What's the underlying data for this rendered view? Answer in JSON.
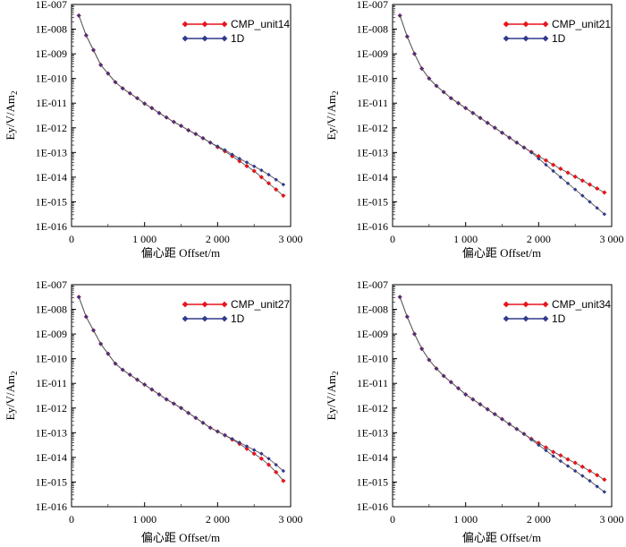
{
  "colors": {
    "cmp": "#e8141b",
    "oned": "#303a8c",
    "axis": "#000000"
  },
  "chart_data": [
    {
      "type": "line",
      "scale": {
        "y": "log10"
      },
      "xlabel": "偏心距 Offset/m",
      "ylabel": "Ey/V/Am",
      "ylabel_sub": "2",
      "xlim": [
        0,
        3000
      ],
      "xticks": [
        0,
        1000,
        2000,
        3000
      ],
      "xtick_labels": [
        "0",
        "1 000",
        "2 000",
        "3 000"
      ],
      "ylim_exp": [
        -16,
        -7
      ],
      "ytick_labels": [
        "1E-016",
        "1E-015",
        "1E-014",
        "1E-013",
        "1E-012",
        "1E-011",
        "1E-010",
        "1E-009",
        "1E-008",
        "1E-007"
      ],
      "legend": {
        "position": "top-right"
      },
      "series": [
        {
          "name": "CMP_unit14",
          "color_key": "cmp",
          "marker": "diamond",
          "x": [
            100,
            200,
            300,
            400,
            500,
            600,
            700,
            800,
            900,
            1000,
            1100,
            1200,
            1300,
            1400,
            1500,
            1600,
            1700,
            1800,
            1900,
            2000,
            2100,
            2200,
            2300,
            2400,
            2500,
            2600,
            2700,
            2800,
            2900
          ],
          "y_exp": [
            -7.45,
            -8.25,
            -8.85,
            -9.45,
            -9.8,
            -10.15,
            -10.4,
            -10.6,
            -10.8,
            -11.02,
            -11.2,
            -11.4,
            -11.58,
            -11.76,
            -11.92,
            -12.1,
            -12.25,
            -12.42,
            -12.6,
            -12.78,
            -12.95,
            -13.15,
            -13.35,
            -13.55,
            -13.75,
            -14.0,
            -14.25,
            -14.5,
            -14.75
          ]
        },
        {
          "name": "1D",
          "color_key": "oned",
          "marker": "diamond",
          "x": [
            100,
            200,
            300,
            400,
            500,
            600,
            700,
            800,
            900,
            1000,
            1100,
            1200,
            1300,
            1400,
            1500,
            1600,
            1700,
            1800,
            1900,
            2000,
            2100,
            2200,
            2300,
            2400,
            2500,
            2600,
            2700,
            2800,
            2900
          ],
          "y_exp": [
            -7.45,
            -8.25,
            -8.85,
            -9.45,
            -9.8,
            -10.15,
            -10.4,
            -10.6,
            -10.8,
            -11.02,
            -11.2,
            -11.4,
            -11.58,
            -11.76,
            -11.92,
            -12.1,
            -12.25,
            -12.42,
            -12.6,
            -12.75,
            -12.9,
            -13.08,
            -13.25,
            -13.4,
            -13.56,
            -13.72,
            -13.9,
            -14.1,
            -14.3
          ]
        }
      ]
    },
    {
      "type": "line",
      "scale": {
        "y": "log10"
      },
      "xlabel": "偏心距 Offset/m",
      "ylabel": "Ey/V/Am",
      "ylabel_sub": "2",
      "xlim": [
        0,
        3000
      ],
      "xticks": [
        0,
        1000,
        2000,
        3000
      ],
      "xtick_labels": [
        "0",
        "1 000",
        "2 000",
        "3 000"
      ],
      "ylim_exp": [
        -16,
        -7
      ],
      "ytick_labels": [
        "1E-016",
        "1E-015",
        "1E-014",
        "1E-013",
        "1E-012",
        "1E-011",
        "1E-010",
        "1E-009",
        "1E-008",
        "1E-007"
      ],
      "legend": {
        "position": "top-right"
      },
      "series": [
        {
          "name": "CMP_unit21",
          "color_key": "cmp",
          "marker": "diamond",
          "x": [
            100,
            200,
            300,
            400,
            500,
            600,
            700,
            800,
            900,
            1000,
            1100,
            1200,
            1300,
            1400,
            1500,
            1600,
            1700,
            1800,
            1900,
            2000,
            2100,
            2200,
            2300,
            2400,
            2500,
            2600,
            2700,
            2800,
            2900
          ],
          "y_exp": [
            -7.45,
            -8.3,
            -9.0,
            -9.6,
            -10.0,
            -10.3,
            -10.55,
            -10.8,
            -11.0,
            -11.2,
            -11.4,
            -11.6,
            -11.8,
            -12.0,
            -12.2,
            -12.4,
            -12.6,
            -12.8,
            -12.98,
            -13.15,
            -13.32,
            -13.5,
            -13.66,
            -13.82,
            -13.98,
            -14.14,
            -14.3,
            -14.46,
            -14.62
          ]
        },
        {
          "name": "1D",
          "color_key": "oned",
          "marker": "diamond",
          "x": [
            100,
            200,
            300,
            400,
            500,
            600,
            700,
            800,
            900,
            1000,
            1100,
            1200,
            1300,
            1400,
            1500,
            1600,
            1700,
            1800,
            1900,
            2000,
            2100,
            2200,
            2300,
            2400,
            2500,
            2600,
            2700,
            2800,
            2900
          ],
          "y_exp": [
            -7.45,
            -8.3,
            -9.0,
            -9.6,
            -10.0,
            -10.3,
            -10.55,
            -10.8,
            -11.0,
            -11.2,
            -11.4,
            -11.6,
            -11.8,
            -12.0,
            -12.2,
            -12.4,
            -12.6,
            -12.8,
            -13.0,
            -13.25,
            -13.5,
            -13.75,
            -14.0,
            -14.25,
            -14.5,
            -14.75,
            -15.0,
            -15.25,
            -15.5
          ]
        }
      ]
    },
    {
      "type": "line",
      "scale": {
        "y": "log10"
      },
      "xlabel": "偏心距 Offset/m",
      "ylabel": "Ey/V/Am",
      "ylabel_sub": "2",
      "xlim": [
        0,
        3000
      ],
      "xticks": [
        0,
        1000,
        2000,
        3000
      ],
      "xtick_labels": [
        "0",
        "1 000",
        "2 000",
        "3 000"
      ],
      "ylim_exp": [
        -16,
        -7
      ],
      "ytick_labels": [
        "1E-016",
        "1E-015",
        "1E-014",
        "1E-013",
        "1E-012",
        "1E-011",
        "1E-010",
        "1E-009",
        "1E-008",
        "1E-007"
      ],
      "legend": {
        "position": "top-right"
      },
      "series": [
        {
          "name": "CMP_unit27",
          "color_key": "cmp",
          "marker": "diamond",
          "x": [
            100,
            200,
            300,
            400,
            500,
            600,
            700,
            800,
            900,
            1000,
            1100,
            1200,
            1300,
            1400,
            1500,
            1600,
            1700,
            1800,
            1900,
            2000,
            2100,
            2200,
            2300,
            2400,
            2500,
            2600,
            2700,
            2800,
            2900
          ],
          "y_exp": [
            -7.5,
            -8.3,
            -8.85,
            -9.4,
            -9.8,
            -10.2,
            -10.45,
            -10.65,
            -10.85,
            -11.05,
            -11.25,
            -11.45,
            -11.65,
            -11.82,
            -12.0,
            -12.2,
            -12.4,
            -12.6,
            -12.8,
            -12.95,
            -13.1,
            -13.28,
            -13.45,
            -13.65,
            -13.85,
            -14.05,
            -14.3,
            -14.6,
            -14.95
          ]
        },
        {
          "name": "1D",
          "color_key": "oned",
          "marker": "diamond",
          "x": [
            100,
            200,
            300,
            400,
            500,
            600,
            700,
            800,
            900,
            1000,
            1100,
            1200,
            1300,
            1400,
            1500,
            1600,
            1700,
            1800,
            1900,
            2000,
            2100,
            2200,
            2300,
            2400,
            2500,
            2600,
            2700,
            2800,
            2900
          ],
          "y_exp": [
            -7.5,
            -8.3,
            -8.85,
            -9.4,
            -9.8,
            -10.2,
            -10.45,
            -10.65,
            -10.85,
            -11.05,
            -11.25,
            -11.45,
            -11.65,
            -11.82,
            -12.0,
            -12.2,
            -12.4,
            -12.6,
            -12.8,
            -12.95,
            -13.1,
            -13.25,
            -13.4,
            -13.55,
            -13.7,
            -13.85,
            -14.05,
            -14.3,
            -14.55
          ]
        }
      ]
    },
    {
      "type": "line",
      "scale": {
        "y": "log10"
      },
      "xlabel": "偏心距 Offset/m",
      "ylabel": "Ey/V/Am",
      "ylabel_sub": "2",
      "xlim": [
        0,
        3000
      ],
      "xticks": [
        0,
        1000,
        2000,
        3000
      ],
      "xtick_labels": [
        "0",
        "1 000",
        "2 000",
        "3 000"
      ],
      "ylim_exp": [
        -16,
        -7
      ],
      "ytick_labels": [
        "1E-016",
        "1E-015",
        "1E-014",
        "1E-013",
        "1E-012",
        "1E-011",
        "1E-010",
        "1E-009",
        "1E-008",
        "1E-007"
      ],
      "legend": {
        "position": "top-right"
      },
      "series": [
        {
          "name": "CMP_unit34",
          "color_key": "cmp",
          "marker": "diamond",
          "x": [
            100,
            200,
            300,
            400,
            500,
            600,
            700,
            800,
            900,
            1000,
            1100,
            1200,
            1300,
            1400,
            1500,
            1600,
            1700,
            1800,
            1900,
            2000,
            2100,
            2200,
            2300,
            2400,
            2500,
            2600,
            2700,
            2800,
            2900
          ],
          "y_exp": [
            -7.5,
            -8.3,
            -9.0,
            -9.6,
            -10.05,
            -10.4,
            -10.7,
            -10.95,
            -11.2,
            -11.45,
            -11.65,
            -11.85,
            -12.05,
            -12.25,
            -12.45,
            -12.65,
            -12.85,
            -13.05,
            -13.25,
            -13.42,
            -13.6,
            -13.78,
            -13.92,
            -14.08,
            -14.22,
            -14.38,
            -14.55,
            -14.72,
            -14.9
          ]
        },
        {
          "name": "1D",
          "color_key": "oned",
          "marker": "diamond",
          "x": [
            100,
            200,
            300,
            400,
            500,
            600,
            700,
            800,
            900,
            1000,
            1100,
            1200,
            1300,
            1400,
            1500,
            1600,
            1700,
            1800,
            1900,
            2000,
            2100,
            2200,
            2300,
            2400,
            2500,
            2600,
            2700,
            2800,
            2900
          ],
          "y_exp": [
            -7.5,
            -8.3,
            -9.0,
            -9.6,
            -10.05,
            -10.4,
            -10.7,
            -10.95,
            -11.2,
            -11.45,
            -11.65,
            -11.85,
            -12.05,
            -12.25,
            -12.45,
            -12.65,
            -12.85,
            -13.05,
            -13.28,
            -13.5,
            -13.72,
            -13.95,
            -14.15,
            -14.35,
            -14.55,
            -14.75,
            -14.95,
            -15.18,
            -15.4
          ]
        }
      ]
    }
  ]
}
